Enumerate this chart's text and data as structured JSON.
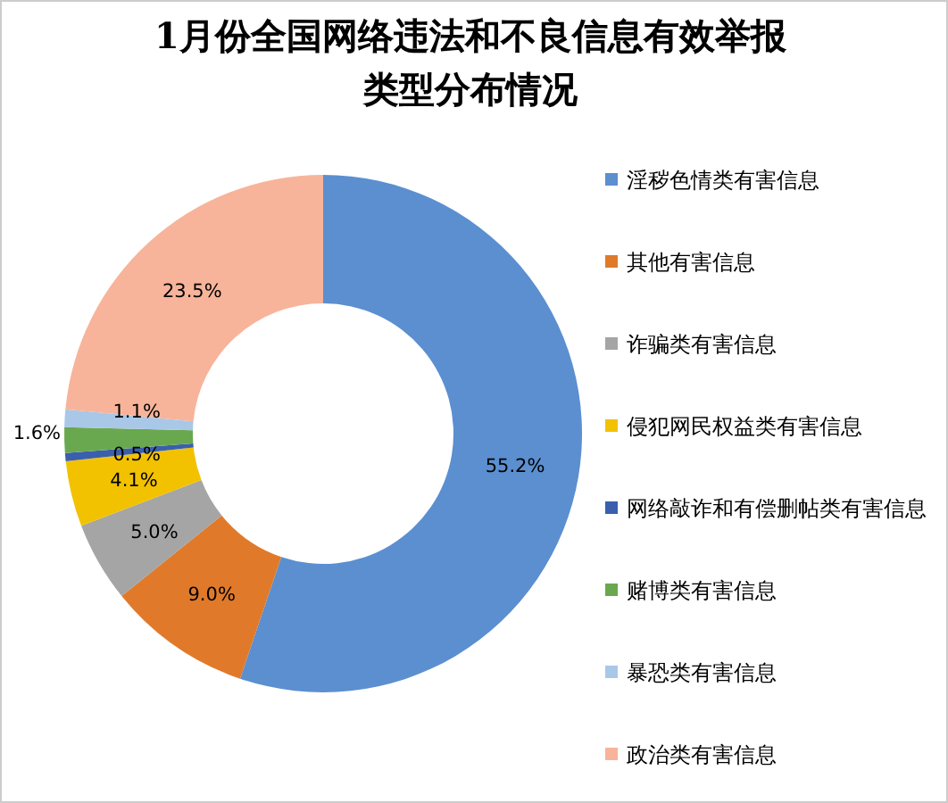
{
  "chart_data": {
    "type": "donut",
    "title": "1月份全国网络违法和不良信息有效举报类型分布情况",
    "categories": [
      "淫秽色情类有害信息",
      "其他有害信息",
      "诈骗类有害信息",
      "侵犯网民权益类有害信息",
      "网络敲诈和有偿删帖类有害信息",
      "赌博类有害信息",
      "暴恐类有害信息",
      "政治类有害信息"
    ],
    "values": [
      55.2,
      9.0,
      5.0,
      4.1,
      0.5,
      1.6,
      1.1,
      23.5
    ],
    "colors": [
      "#5b8fd0",
      "#e07a2a",
      "#a5a5a5",
      "#f2c200",
      "#3a5fad",
      "#6aa84f",
      "#a9c8e8",
      "#f7b49a"
    ],
    "value_labels": [
      "55.2%",
      "9.0%",
      "5.0%",
      "4.1%",
      "0.5%",
      "1.6%",
      "1.1%",
      "23.5%"
    ],
    "legend": "right"
  }
}
